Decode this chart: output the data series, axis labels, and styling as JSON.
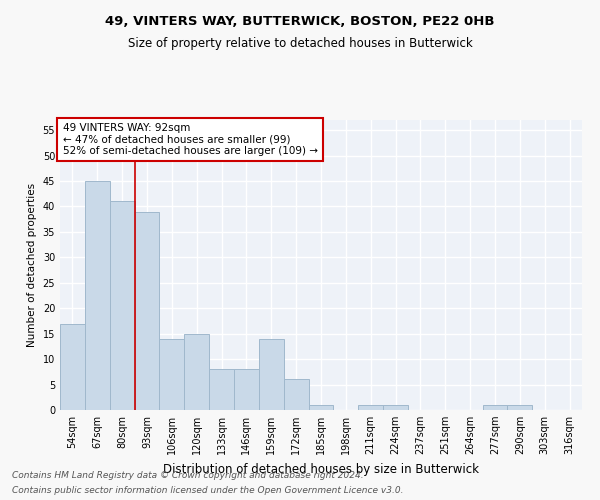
{
  "title": "49, VINTERS WAY, BUTTERWICK, BOSTON, PE22 0HB",
  "subtitle": "Size of property relative to detached houses in Butterwick",
  "xlabel": "Distribution of detached houses by size in Butterwick",
  "ylabel": "Number of detached properties",
  "categories": [
    "54sqm",
    "67sqm",
    "80sqm",
    "93sqm",
    "106sqm",
    "120sqm",
    "133sqm",
    "146sqm",
    "159sqm",
    "172sqm",
    "185sqm",
    "198sqm",
    "211sqm",
    "224sqm",
    "237sqm",
    "251sqm",
    "264sqm",
    "277sqm",
    "290sqm",
    "303sqm",
    "316sqm"
  ],
  "values": [
    17,
    45,
    41,
    39,
    14,
    15,
    8,
    8,
    14,
    6,
    1,
    0,
    1,
    1,
    0,
    0,
    0,
    1,
    1,
    0,
    0
  ],
  "bar_color": "#c9d9e8",
  "bar_edge_color": "#a0b8cc",
  "vline_x": 2.5,
  "vline_color": "#cc0000",
  "annotation_text": "49 VINTERS WAY: 92sqm\n← 47% of detached houses are smaller (99)\n52% of semi-detached houses are larger (109) →",
  "annotation_box_color": "#ffffff",
  "annotation_box_edge": "#cc0000",
  "ylim": [
    0,
    57
  ],
  "yticks": [
    0,
    5,
    10,
    15,
    20,
    25,
    30,
    35,
    40,
    45,
    50,
    55
  ],
  "background_color": "#eef2f8",
  "grid_color": "#ffffff",
  "fig_facecolor": "#f8f8f8",
  "footer_line1": "Contains HM Land Registry data © Crown copyright and database right 2024.",
  "footer_line2": "Contains public sector information licensed under the Open Government Licence v3.0.",
  "title_fontsize": 9.5,
  "subtitle_fontsize": 8.5,
  "xlabel_fontsize": 8.5,
  "ylabel_fontsize": 7.5,
  "tick_fontsize": 7,
  "annotation_fontsize": 7.5,
  "footer_fontsize": 6.5
}
